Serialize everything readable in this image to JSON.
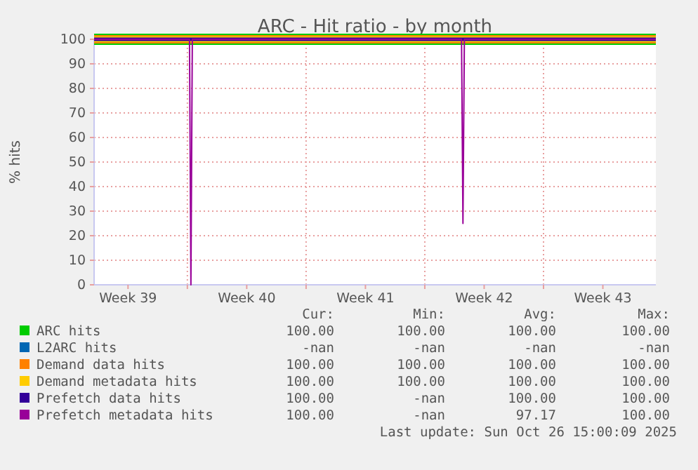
{
  "chart_data": {
    "type": "line",
    "title": "ARC - Hit ratio - by month",
    "ylabel": "% hits",
    "xlim": [
      "2025-09-23T12:00",
      "2025-10-26T15:00"
    ],
    "xticks": [
      {
        "value": "2025-09-25T12:00",
        "label": "Week 39"
      },
      {
        "value": "2025-09-29",
        "label": null
      },
      {
        "value": "2025-10-02T12:00",
        "label": "Week 40"
      },
      {
        "value": "2025-10-06",
        "label": null
      },
      {
        "value": "2025-10-09T12:00",
        "label": "Week 41"
      },
      {
        "value": "2025-10-13",
        "label": null
      },
      {
        "value": "2025-10-16T12:00",
        "label": "Week 42"
      },
      {
        "value": "2025-10-20",
        "label": null
      },
      {
        "value": "2025-10-23T12:00",
        "label": "Week 43"
      }
    ],
    "ylim": [
      0,
      100
    ],
    "yticks": [
      0,
      10,
      20,
      30,
      40,
      50,
      60,
      70,
      80,
      90,
      100
    ],
    "grid": true,
    "legend": "bottom",
    "line_style": "solid",
    "marker": "none",
    "series": [
      {
        "name": "ARC hits",
        "color": "#00cc00",
        "x": [
          "2025-09-23T12:00",
          "2025-10-26T15:00"
        ],
        "values": [
          100,
          100
        ]
      },
      {
        "name": "L2ARC hits",
        "color": "#0066b3"
      },
      {
        "name": "Demand data hits",
        "color": "#ff8000",
        "x": [
          "2025-09-23T12:00",
          "2025-10-26T15:00"
        ],
        "values": [
          100,
          100
        ]
      },
      {
        "name": "Demand metadata hits",
        "color": "#ffcc00",
        "x": [
          "2025-09-23T12:00",
          "2025-10-26T15:00"
        ],
        "values": [
          100,
          100
        ]
      },
      {
        "name": "Prefetch data hits",
        "color": "#330099",
        "x": [
          "2025-09-23T12:00",
          "2025-10-26T15:00"
        ],
        "values": [
          100,
          100
        ]
      },
      {
        "name": "Prefetch metadata hits",
        "color": "#990099",
        "x": [
          "2025-09-23T12:00",
          "2025-09-29T03:00",
          "2025-09-29T05:00",
          "2025-09-29T07:00",
          "2025-10-15T04:00",
          "2025-10-15T06:00",
          "2025-10-15T08:00",
          "2025-10-26T15:00"
        ],
        "values": [
          100,
          100,
          0,
          100,
          100,
          25,
          100,
          100
        ]
      }
    ],
    "annotations": [
      "Cur:",
      "Min:",
      "Avg:",
      "Max:",
      "100.00",
      "100.00",
      "100.00",
      "100.00",
      "-nan",
      "-nan",
      "-nan",
      "-nan",
      "100.00",
      "100.00",
      "100.00",
      "100.00",
      "100.00",
      "100.00",
      "100.00",
      "100.00",
      "100.00",
      "-nan",
      "100.00",
      "100.00",
      "100.00",
      "-nan",
      "97.17",
      "100.00",
      "Last update: Sun Oct 26 15:00:09 2025"
    ]
  }
}
